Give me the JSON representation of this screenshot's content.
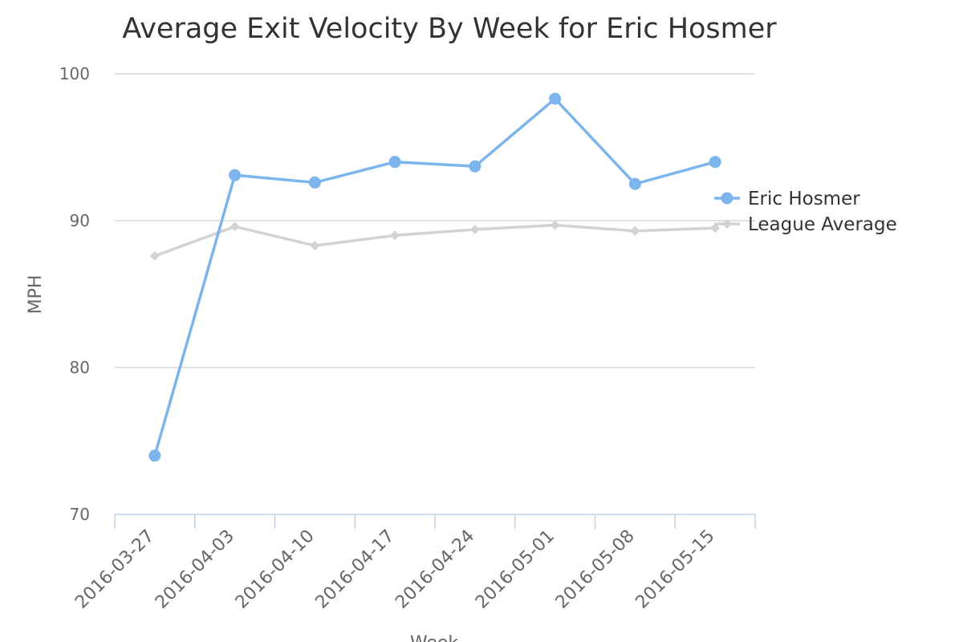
{
  "chart_data": {
    "type": "line",
    "title": "Average Exit Velocity By Week for Eric Hosmer",
    "xlabel": "Week",
    "ylabel": "MPH",
    "ylim": [
      70,
      100
    ],
    "yticks": [
      70,
      80,
      90,
      100
    ],
    "grid": true,
    "legend_position": "right",
    "categories": [
      "2016-03-27",
      "2016-04-03",
      "2016-04-10",
      "2016-04-17",
      "2016-04-24",
      "2016-05-01",
      "2016-05-08",
      "2016-05-15"
    ],
    "series": [
      {
        "name": "Eric Hosmer",
        "color": "#7cb5ec",
        "marker": "circle",
        "values": [
          74.0,
          93.1,
          92.6,
          94.0,
          93.7,
          98.3,
          92.5,
          94.0
        ]
      },
      {
        "name": "League Average",
        "color": "#d3d3d3",
        "marker": "diamond",
        "values": [
          87.6,
          89.6,
          88.3,
          89.0,
          89.4,
          89.7,
          89.3,
          89.5
        ]
      }
    ]
  }
}
